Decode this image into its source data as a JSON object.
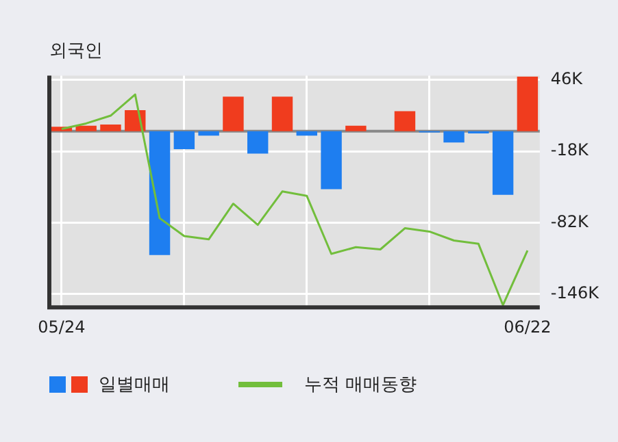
{
  "chart_data": {
    "type": "bar",
    "title": "외국인",
    "categories": [
      "05/24",
      null,
      null,
      null,
      null,
      null,
      null,
      null,
      null,
      null,
      null,
      null,
      null,
      null,
      null,
      null,
      null,
      null,
      null,
      "06/22"
    ],
    "series": [
      {
        "name": "일별매매",
        "values": [
          4,
          5,
          6,
          19,
          -111,
          -16,
          -4,
          31,
          -20,
          31,
          -4,
          -52,
          5,
          0,
          18,
          -1,
          -10,
          -2,
          -57,
          49
        ],
        "colors": [
          "#f03c1e",
          "#f03c1e",
          "#f03c1e",
          "#f03c1e",
          "#1e7ef0",
          "#1e7ef0",
          "#1e7ef0",
          "#f03c1e",
          "#1e7ef0",
          "#f03c1e",
          "#1e7ef0",
          "#1e7ef0",
          "#f03c1e",
          "#f03c1e",
          "#f03c1e",
          "#1e7ef0",
          "#1e7ef0",
          "#1e7ef0",
          "#1e7ef0",
          "#f03c1e"
        ]
      },
      {
        "name": "누적 매매동향",
        "type": "line",
        "color": "#72be3c",
        "values": [
          2,
          7,
          14,
          33,
          -78,
          -94,
          -97,
          -65,
          -84,
          -54,
          -58,
          -110,
          -104,
          -106,
          -87,
          -90,
          -98,
          -101,
          -156,
          -107
        ]
      }
    ],
    "ylim": [
      -158,
      50
    ],
    "yticks": [
      {
        "value": 46,
        "label": "46K"
      },
      {
        "value": -18,
        "label": "-18K"
      },
      {
        "value": -82,
        "label": "-82K"
      },
      {
        "value": -146,
        "label": "-146K"
      }
    ],
    "ref_lines": [
      {
        "axis": "y",
        "value": 0,
        "color": "#888888"
      }
    ],
    "grid": true,
    "legend": "bottom",
    "marker": "none"
  }
}
